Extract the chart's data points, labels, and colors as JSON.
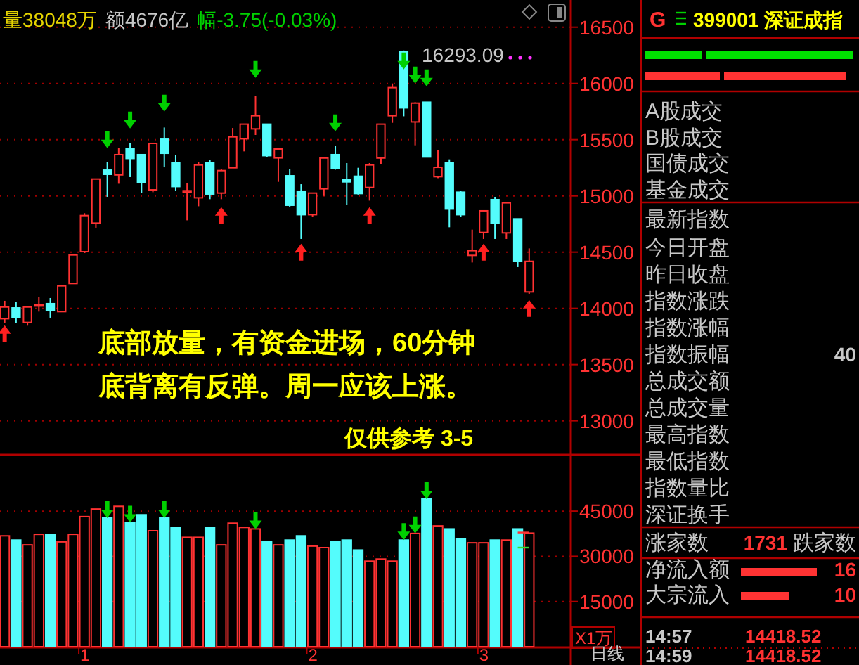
{
  "chart_data": [
    {
      "type": "candlestick",
      "categories": [
        null,
        null,
        null,
        null,
        null,
        null,
        null,
        "1",
        null,
        null,
        null,
        null,
        null,
        null,
        null,
        null,
        null,
        null,
        null,
        null,
        null,
        null,
        null,
        null,
        null,
        null,
        null,
        "2",
        null,
        null,
        null,
        null,
        null,
        null,
        null,
        null,
        null,
        null,
        null,
        null,
        null,
        null,
        "3",
        null,
        null,
        null,
        null
      ],
      "ohlc": [
        [
          13908,
          14067,
          13867,
          14012
        ],
        [
          14004,
          14054,
          13867,
          13917
        ],
        [
          13875,
          14020,
          13846,
          14012
        ],
        [
          14025,
          14104,
          13971,
          14033
        ],
        [
          14042,
          14092,
          13917,
          13983
        ],
        [
          13971,
          14200,
          13971,
          14200
        ],
        [
          14221,
          14475,
          14221,
          14475
        ],
        [
          14504,
          14846,
          14492,
          14825
        ],
        [
          14758,
          15150,
          14717,
          15150
        ],
        [
          15229,
          15304,
          14992,
          15192
        ],
        [
          15187,
          15429,
          15108,
          15367
        ],
        [
          15417,
          15471,
          15167,
          15333
        ],
        [
          15367,
          15367,
          15025,
          15117
        ],
        [
          15054,
          15467,
          15033,
          15467
        ],
        [
          15504,
          15608,
          15254,
          15379
        ],
        [
          15292,
          15367,
          15042,
          15083
        ],
        [
          15033,
          15117,
          14783,
          15046
        ],
        [
          14983,
          15304,
          14908,
          15275
        ],
        [
          15292,
          15317,
          14971,
          15017
        ],
        [
          15025,
          15242,
          14971,
          15225
        ],
        [
          15250,
          15604,
          15250,
          15525
        ],
        [
          15508,
          15638,
          15396,
          15638
        ],
        [
          15596,
          15888,
          15542,
          15713
        ],
        [
          15638,
          15638,
          15346,
          15358
        ],
        [
          15338,
          15417,
          15125,
          15417
        ],
        [
          15179,
          15242,
          14900,
          14917
        ],
        [
          15042,
          15104,
          14617,
          14833
        ],
        [
          14833,
          15025,
          14817,
          15025
        ],
        [
          15063,
          15337,
          15000,
          15337
        ],
        [
          15367,
          15442,
          15233,
          15242
        ],
        [
          15142,
          15292,
          14921,
          15125
        ],
        [
          15175,
          15250,
          15012,
          15021
        ],
        [
          15075,
          15292,
          14958,
          15275
        ],
        [
          15337,
          15638,
          15283,
          15638
        ],
        [
          15713,
          16000,
          15650,
          15963
        ],
        [
          16283,
          16293.09,
          15708,
          15783
        ],
        [
          15658,
          15833,
          15450,
          15825
        ],
        [
          15833,
          15833,
          15346,
          15346
        ],
        [
          15171,
          15408,
          15158,
          15254
        ],
        [
          15292,
          15325,
          14721,
          14883
        ],
        [
          15033,
          15042,
          14813,
          14833
        ],
        [
          14471,
          14700,
          14408,
          14513
        ],
        [
          14675,
          14867,
          14617,
          14867
        ],
        [
          14967,
          14992,
          14617,
          14758
        ],
        [
          14671,
          14938,
          14617,
          14938
        ],
        [
          14796,
          14796,
          14367,
          14421
        ],
        [
          14146,
          14533,
          14129,
          14418.52
        ]
      ],
      "colors": [
        "#ff3232",
        "#54fcfc",
        "#ff3232",
        "#ff3232",
        "#54fcfc",
        "#ff3232",
        "#ff3232",
        "#ff3232",
        "#ff3232",
        "#54fcfc",
        "#ff3232",
        "#54fcfc",
        "#54fcfc",
        "#ff3232",
        "#54fcfc",
        "#54fcfc",
        "#ff3232",
        "#ff3232",
        "#54fcfc",
        "#ff3232",
        "#ff3232",
        "#ff3232",
        "#ff3232",
        "#54fcfc",
        "#ff3232",
        "#54fcfc",
        "#54fcfc",
        "#ff3232",
        "#ff3232",
        "#54fcfc",
        "#54fcfc",
        "#54fcfc",
        "#ff3232",
        "#ff3232",
        "#ff3232",
        "#54fcfc",
        "#ff3232",
        "#54fcfc",
        "#ff3232",
        "#54fcfc",
        "#54fcfc",
        "#ff3232",
        "#ff3232",
        "#54fcfc",
        "#ff3232",
        "#54fcfc",
        "#ff3232"
      ],
      "series": [
        {
          "type": "scatter",
          "color": "#00d000",
          "values": [
            null,
            null,
            null,
            null,
            null,
            null,
            null,
            null,
            null,
            15500,
            null,
            15675,
            null,
            null,
            15825,
            null,
            null,
            null,
            null,
            null,
            null,
            null,
            16125,
            null,
            null,
            null,
            null,
            null,
            null,
            15650,
            null,
            null,
            null,
            null,
            null,
            16200,
            16075,
            16050,
            null,
            null,
            null,
            null,
            null,
            null,
            null,
            null,
            null
          ]
        },
        {
          "type": "scatter",
          "color": "#ff2020",
          "values": [
            13775,
            null,
            null,
            null,
            null,
            null,
            null,
            null,
            null,
            null,
            null,
            null,
            null,
            null,
            null,
            null,
            null,
            null,
            null,
            14825,
            null,
            null,
            null,
            null,
            null,
            null,
            14500,
            null,
            null,
            null,
            null,
            null,
            14825,
            null,
            null,
            null,
            null,
            null,
            null,
            null,
            null,
            null,
            14500,
            null,
            null,
            null,
            14000
          ]
        }
      ],
      "ylim": [
        12704,
        16742
      ],
      "yticks": [
        13000,
        13500,
        14000,
        14500,
        15000,
        15500,
        16000,
        16500
      ],
      "grid": "y",
      "tick_labels": "y",
      "annotations": [
        "量38048万",
        "额4676亿",
        "幅-3.75(-0.03%)",
        "16293.09",
        "底部放量，有资金进场，60分钟",
        "底背离有反弹。周一应该上涨。",
        "仅供参考 3-5"
      ]
    },
    {
      "type": "bar",
      "categories": [
        null,
        null,
        null,
        null,
        null,
        null,
        null,
        "1",
        null,
        null,
        null,
        null,
        null,
        null,
        null,
        null,
        null,
        null,
        null,
        null,
        null,
        null,
        null,
        null,
        null,
        null,
        null,
        "2",
        null,
        null,
        null,
        null,
        null,
        null,
        null,
        null,
        null,
        null,
        null,
        null,
        null,
        null,
        "3",
        null,
        null,
        null,
        null
      ],
      "values": [
        36800,
        35400,
        33800,
        37300,
        37300,
        34800,
        37300,
        43200,
        45700,
        42700,
        46600,
        41200,
        43800,
        38500,
        42700,
        39600,
        36300,
        36300,
        39600,
        33800,
        41000,
        39600,
        39100,
        34900,
        33800,
        35400,
        36800,
        33400,
        32900,
        34900,
        35400,
        32100,
        28400,
        29100,
        28400,
        35400,
        37600,
        49000,
        40100,
        39100,
        35900,
        34500,
        34500,
        35400,
        35400,
        39100,
        37700
      ],
      "colors": [
        "#ff3232",
        "#54fcfc",
        "#ff3232",
        "#ff3232",
        "#54fcfc",
        "#ff3232",
        "#ff3232",
        "#ff3232",
        "#ff3232",
        "#54fcfc",
        "#ff3232",
        "#54fcfc",
        "#54fcfc",
        "#ff3232",
        "#54fcfc",
        "#54fcfc",
        "#ff3232",
        "#ff3232",
        "#54fcfc",
        "#ff3232",
        "#ff3232",
        "#ff3232",
        "#ff3232",
        "#54fcfc",
        "#ff3232",
        "#54fcfc",
        "#54fcfc",
        "#ff3232",
        "#ff3232",
        "#54fcfc",
        "#54fcfc",
        "#54fcfc",
        "#ff3232",
        "#ff3232",
        "#ff3232",
        "#54fcfc",
        "#ff3232",
        "#54fcfc",
        "#ff3232",
        "#54fcfc",
        "#54fcfc",
        "#ff3232",
        "#ff3232",
        "#54fcfc",
        "#ff3232",
        "#54fcfc",
        "#ff3232"
      ],
      "series": [
        {
          "type": "scatter",
          "color": "#00d000",
          "values": [
            null,
            null,
            null,
            null,
            null,
            null,
            null,
            null,
            null,
            45500,
            null,
            44000,
            null,
            null,
            45500,
            null,
            null,
            null,
            null,
            null,
            null,
            null,
            41900,
            null,
            null,
            null,
            null,
            null,
            null,
            null,
            null,
            null,
            null,
            null,
            null,
            38200,
            40400,
            51800,
            null,
            null,
            null,
            null,
            null,
            null,
            null,
            null,
            null
          ]
        },
        {
          "type": "line",
          "color": "#ff3232",
          "values": [
            null,
            null,
            null,
            null,
            null,
            null,
            null,
            null,
            null,
            null,
            null,
            null,
            null,
            null,
            null,
            null,
            null,
            null,
            null,
            null,
            null,
            null,
            null,
            null,
            null,
            null,
            null,
            null,
            null,
            null,
            null,
            null,
            null,
            null,
            null,
            null,
            null,
            null,
            null,
            null,
            null,
            null,
            null,
            null,
            null,
            37900,
            37900
          ]
        },
        {
          "type": "line",
          "color": "#33dd33",
          "values": [
            null,
            null,
            null,
            null,
            null,
            null,
            null,
            null,
            null,
            null,
            null,
            null,
            null,
            null,
            null,
            null,
            null,
            null,
            null,
            null,
            null,
            null,
            null,
            null,
            null,
            null,
            null,
            null,
            null,
            null,
            null,
            null,
            null,
            null,
            null,
            null,
            null,
            null,
            null,
            null,
            null,
            null,
            null,
            null,
            null,
            32900,
            32900
          ]
        }
      ],
      "ylim": [
        0,
        63000
      ],
      "yticks": [
        15000,
        30000,
        45000
      ],
      "grid": "y",
      "xlabel": "日线",
      "annotations": [
        "X1万"
      ]
    },
    {
      "type": "other",
      "title": "399001 深证成指",
      "annotations": [
        "G",
        "A股成交",
        "B股成交",
        "国债成交",
        "基金成交",
        "最新指数",
        "今日开盘",
        "昨日收盘",
        "指数涨跌",
        "指数涨幅",
        "指数振幅",
        "40",
        "总成交额",
        "总成交量",
        "最高指数",
        "最低指数",
        "指数量比",
        "深证换手",
        "涨家数",
        "1731",
        "跌家数",
        "净流入额",
        "16",
        "大宗流入",
        "10",
        "14:57",
        "14418.52",
        "14:59",
        "14418.52"
      ]
    }
  ]
}
